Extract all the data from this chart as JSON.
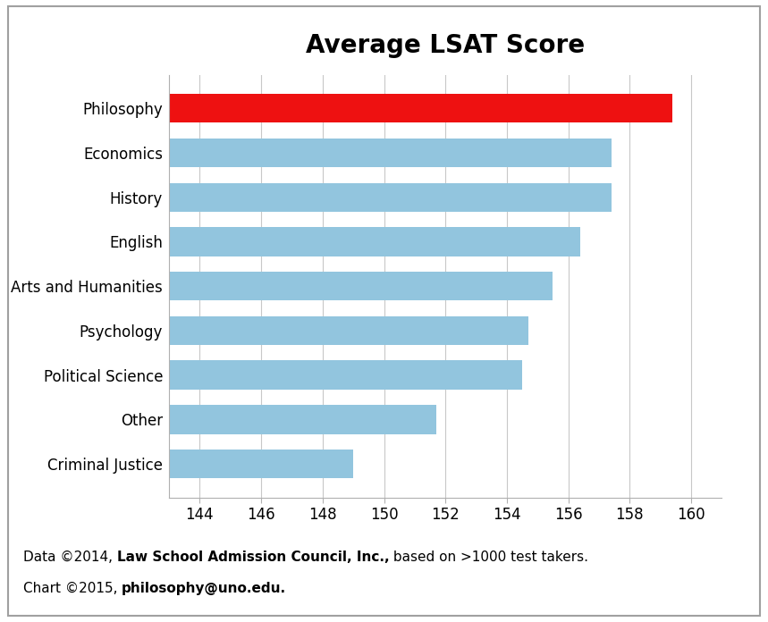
{
  "title": "Average LSAT Score",
  "categories": [
    "Criminal Justice",
    "Other",
    "Political Science",
    "Psychology",
    "Arts and Humanities",
    "English",
    "History",
    "Economics",
    "Philosophy"
  ],
  "values": [
    149.0,
    151.7,
    154.5,
    154.7,
    155.5,
    156.4,
    157.4,
    157.4,
    159.4
  ],
  "bar_colors": [
    "#92c5de",
    "#92c5de",
    "#92c5de",
    "#92c5de",
    "#92c5de",
    "#92c5de",
    "#92c5de",
    "#92c5de",
    "#ee1111"
  ],
  "xlim_min": 143,
  "xlim_max": 161,
  "xticks": [
    144,
    146,
    148,
    150,
    152,
    154,
    156,
    158,
    160
  ],
  "background_color": "#ffffff",
  "chart_bg": "#ffffff",
  "title_fontsize": 20,
  "tick_fontsize": 12,
  "label_fontsize": 12,
  "grid_color": "#c8c8c8",
  "border_color": "#b0b0b0",
  "fn1_normal1": "Data ©2014, ",
  "fn1_bold": "Law School Admission Council, Inc.,",
  "fn1_normal2": " based on >1000 test takers.",
  "fn2_normal": "Chart ©2015, ",
  "fn2_bold": "philosophy@uno.edu.",
  "footnote_fontsize": 11
}
